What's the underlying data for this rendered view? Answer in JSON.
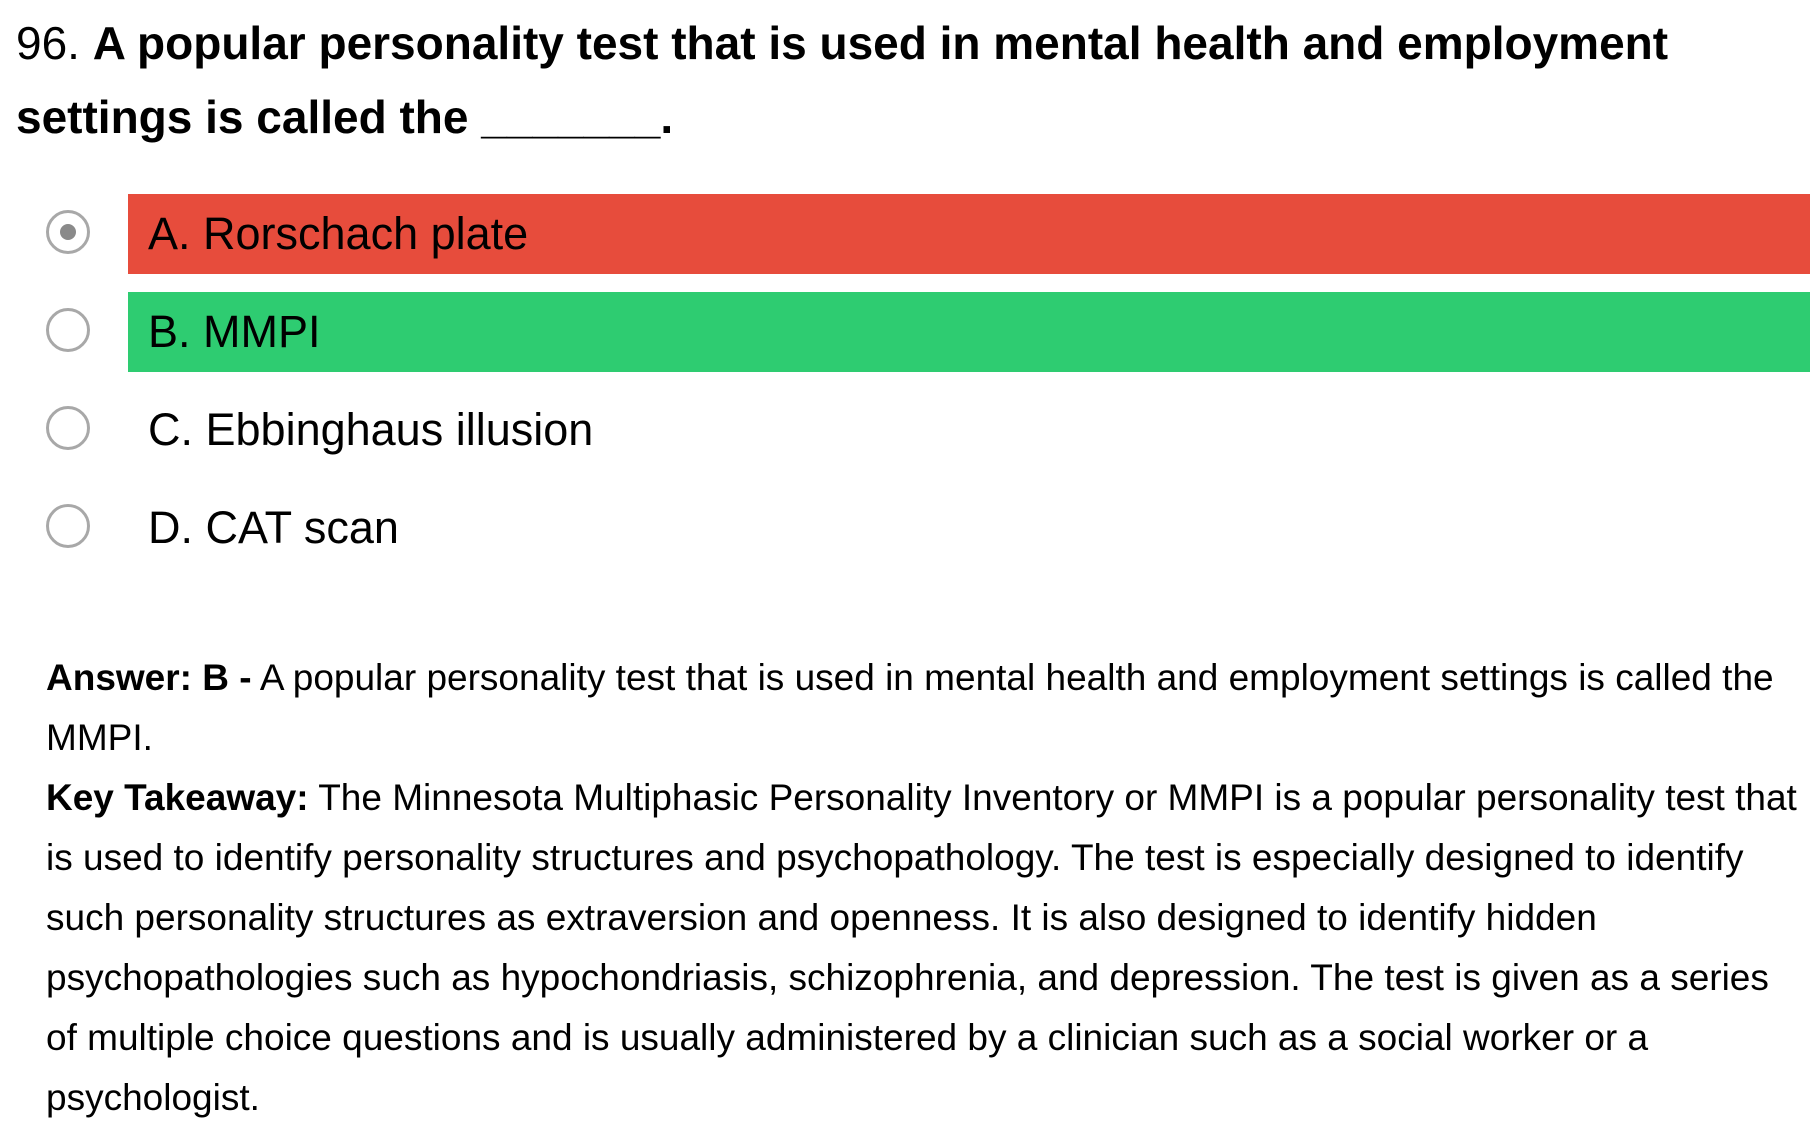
{
  "question": {
    "number": "96.",
    "text": "A popular personality test that is used in mental health and employment settings is called the _______."
  },
  "options": [
    {
      "label": "A. Rorschach plate",
      "selected": true,
      "status_color": "#e74c3c"
    },
    {
      "label": "B. MMPI",
      "selected": false,
      "status_color": "#2ecc71"
    },
    {
      "label": "C. Ebbinghaus illusion",
      "selected": false,
      "status_color": ""
    },
    {
      "label": "D. CAT scan",
      "selected": false,
      "status_color": ""
    }
  ],
  "explanation": {
    "answer_label": "Answer: B -",
    "answer_text": "A popular personality test that is used in mental health and employment settings is called the MMPI.",
    "takeaway_label": "Key Takeaway:",
    "takeaway_text": "The Minnesota Multiphasic Personality Inventory or MMPI is a popular personality test that is used to identify personality structures and psychopathology. The test is especially designed to identify such personality structures as extraversion and openness. It is also designed to identify hidden psychopathologies such as hypochondriasis, schizophrenia, and depression. The test is given as a series of multiple choice questions and is usually administered by a clinician such as a social worker or a psychologist."
  }
}
